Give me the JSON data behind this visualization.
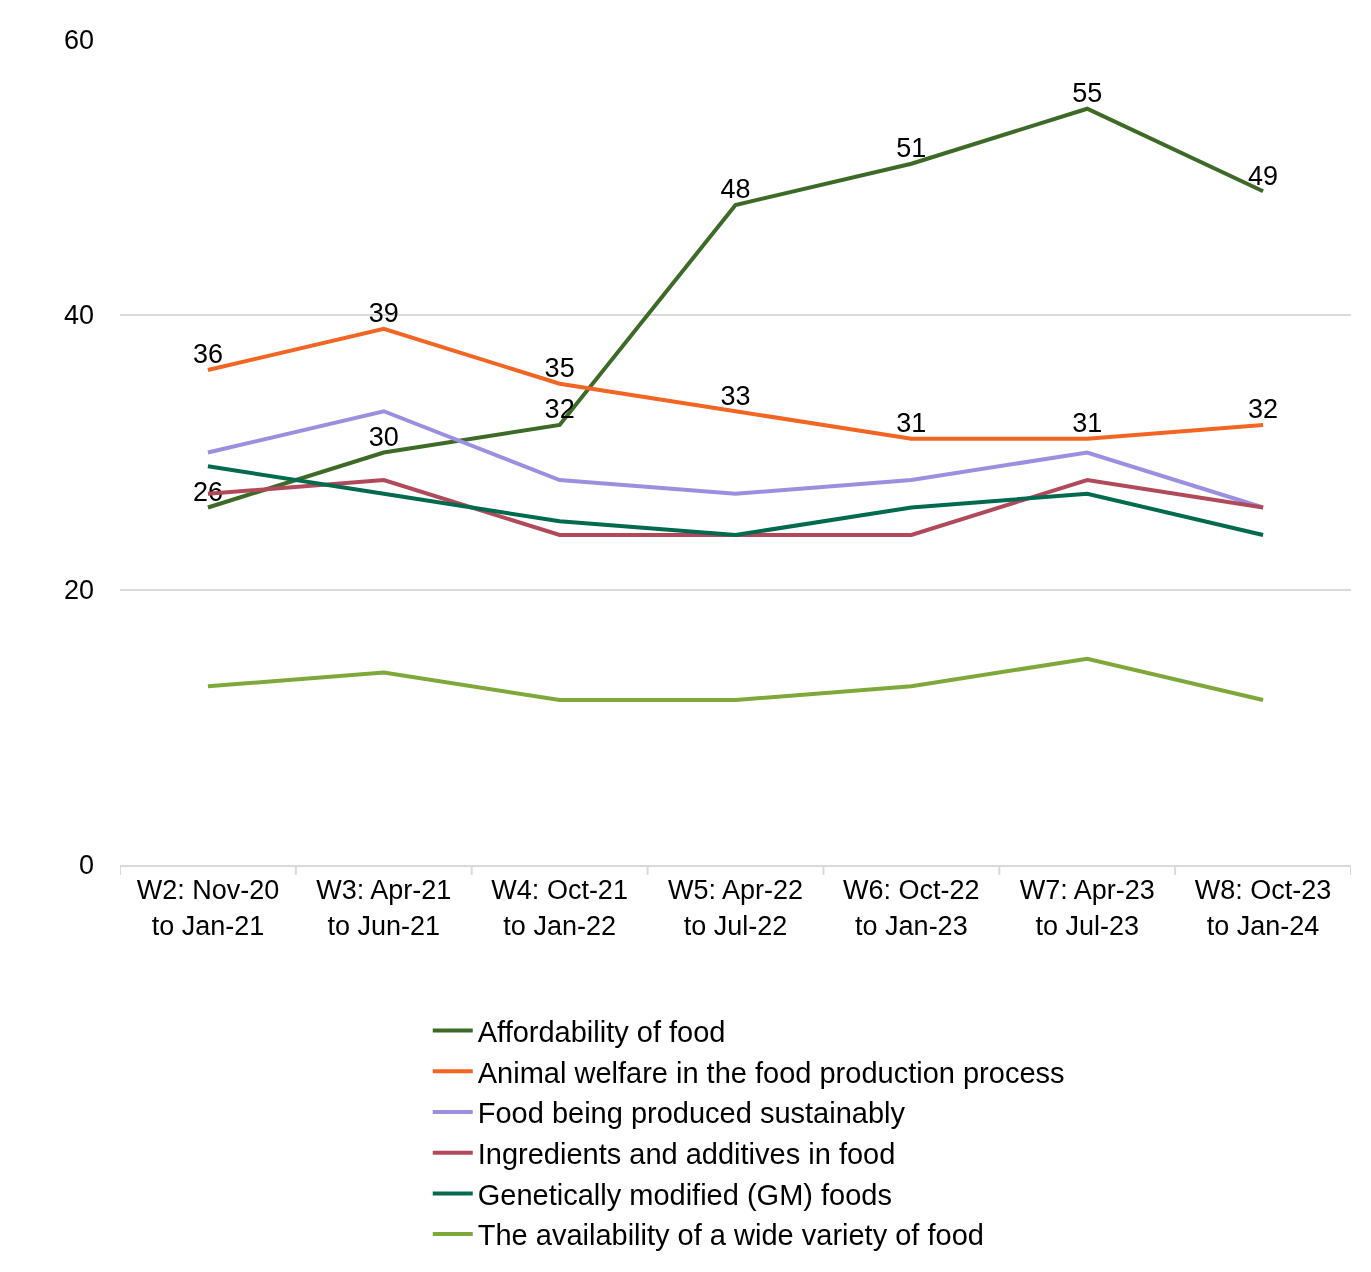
{
  "chart_data": {
    "type": "line",
    "categories": [
      "W2: Nov-20 to Jan-21",
      "W3: Apr-21 to Jun-21",
      "W4: Oct-21 to Jan-22",
      "W5: Apr-22 to Jul-22",
      "W6: Oct-22 to Jan-23",
      "W7: Apr-23 to Jul-23",
      "W8: Oct-23 to Jan-24"
    ],
    "series": [
      {
        "name": "Affordability of food",
        "color": "#3d6b27",
        "values": [
          26,
          30,
          32,
          48,
          51,
          55,
          49
        ],
        "value_labels": [
          "26",
          "30",
          "32",
          "48",
          "51",
          "55",
          "49"
        ]
      },
      {
        "name": "Animal welfare in the food production process",
        "color": "#f26522",
        "values": [
          36,
          39,
          35,
          33,
          31,
          31,
          32
        ],
        "value_labels": [
          "36",
          "39",
          "35",
          "33",
          "31",
          "31",
          "32"
        ]
      },
      {
        "name": "Food being produced sustainably",
        "color": "#9b8fe0",
        "values": [
          30,
          33,
          28,
          27,
          28,
          30,
          26
        ]
      },
      {
        "name": "Ingredients and additives in food",
        "color": "#b04a5a",
        "values": [
          27,
          28,
          24,
          24,
          24,
          28,
          26
        ]
      },
      {
        "name": "Genetically modified (GM) foods",
        "color": "#006a4e",
        "values": [
          29,
          27,
          25,
          24,
          26,
          27,
          24
        ]
      },
      {
        "name": "The availability of a wide variety of food",
        "color": "#7ea83a",
        "values": [
          13,
          14,
          12,
          12,
          13,
          15,
          12
        ]
      }
    ],
    "ylim": [
      0,
      60
    ],
    "yticks": [
      0,
      20,
      40,
      60
    ],
    "grid": "y",
    "legend": "bottom",
    "marker": "none",
    "line_style": "solid"
  }
}
